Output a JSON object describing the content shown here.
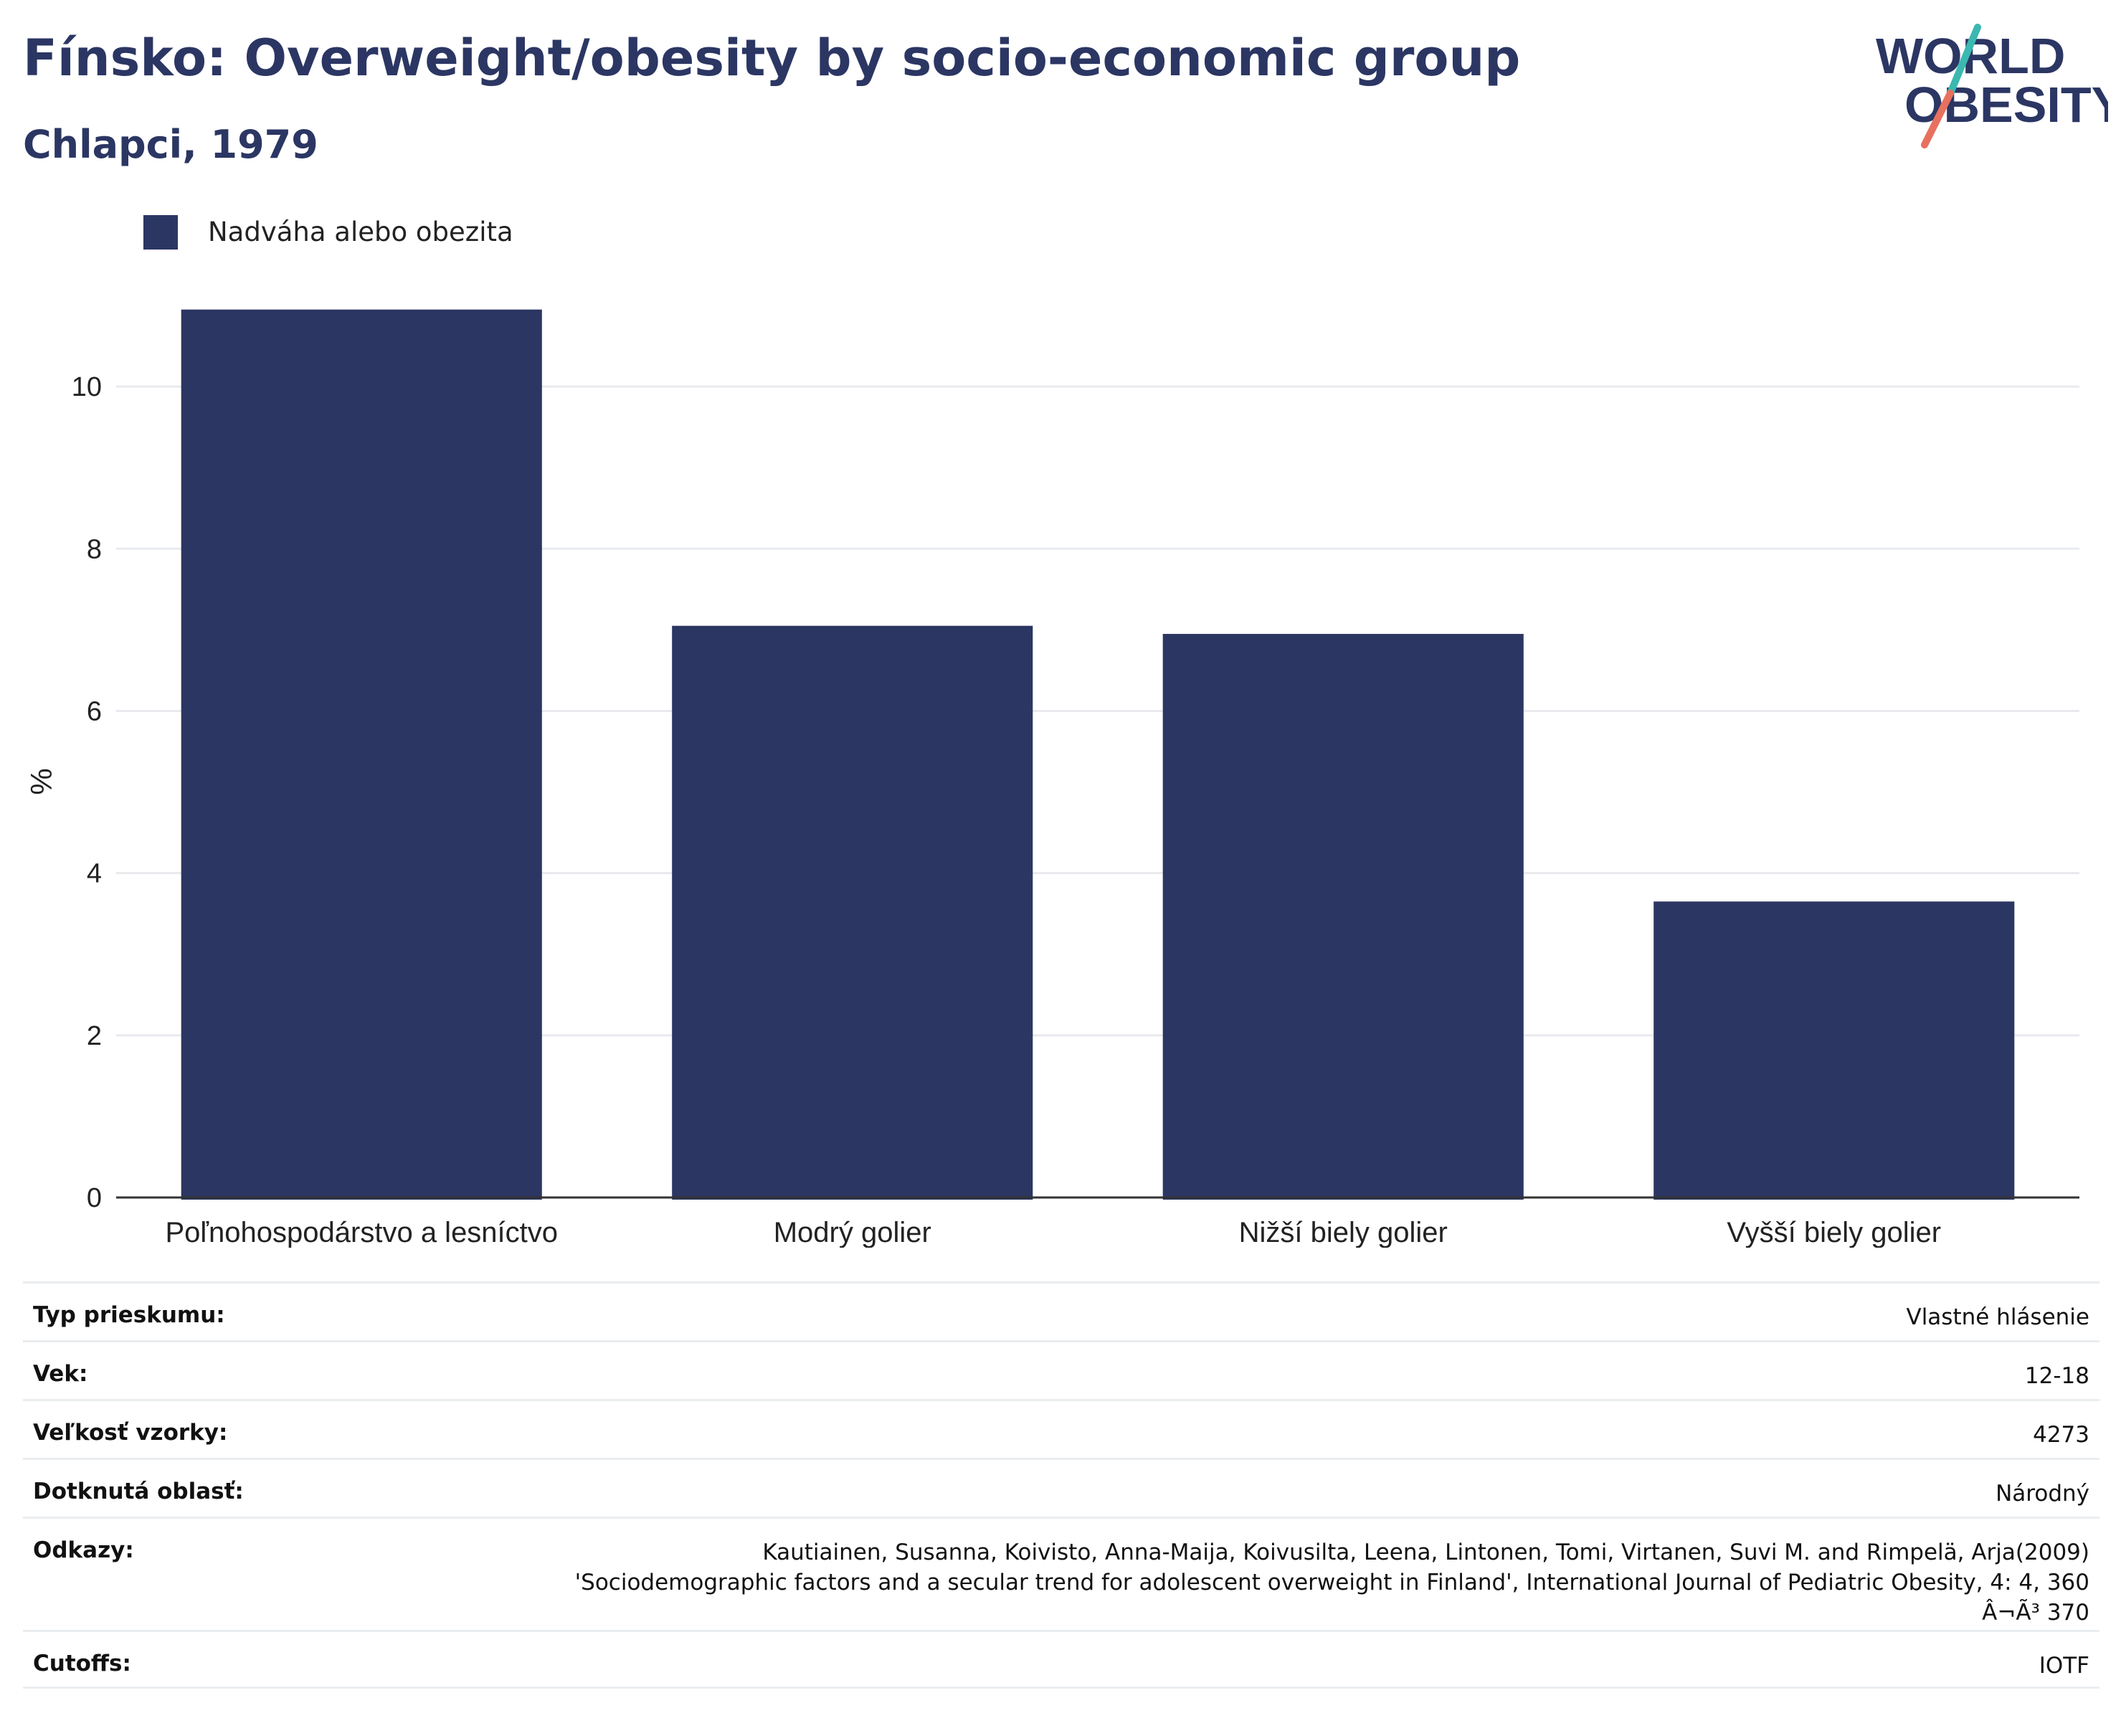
{
  "header": {
    "title": "Fínsko: Overweight/obesity by socio-economic group",
    "subtitle": "Chlapci, 1979"
  },
  "logo": {
    "line1": "WORLD",
    "line2": "OBESITY",
    "colors": {
      "text": "#2b3663",
      "slash_top": "#3bb8b0",
      "slash_bottom": "#e8705f"
    }
  },
  "legend": {
    "label": "Nadváha alebo obezita",
    "color": "#2b3663"
  },
  "chart_data": {
    "type": "bar",
    "title": "",
    "xlabel": "",
    "ylabel": "%",
    "categories": [
      "Poľnohospodárstvo a lesníctvo",
      "Modrý golier",
      "Nižší biely golier",
      "Vyšší biely golier"
    ],
    "series": [
      {
        "name": "Nadváha alebo obezita",
        "values": [
          10.95,
          7.05,
          6.95,
          3.65
        ],
        "color": "#2b3663"
      }
    ],
    "ylim": [
      0,
      11
    ],
    "yticks": [
      0,
      2,
      4,
      6,
      8,
      10
    ],
    "grid": true,
    "legend_position": "top-left"
  },
  "info": {
    "rows": [
      {
        "key": "Typ prieskumu:",
        "lines": [
          "Vlastné hlásenie"
        ]
      },
      {
        "key": "Vek:",
        "lines": [
          "12-18"
        ]
      },
      {
        "key": "Veľkosť vzorky:",
        "lines": [
          "4273"
        ]
      },
      {
        "key": "Dotknutá oblasť:",
        "lines": [
          "Národný"
        ]
      },
      {
        "key": "Odkazy:",
        "lines": [
          "Kautiainen, Susanna, Koivisto, Anna-Maija, Koivusilta, Leena, Lintonen, Tomi, Virtanen, Suvi M. and Rimpelä, Arja(2009)",
          "'Sociodemographic factors and a secular trend for adolescent overweight in Finland', International Journal of Pediatric Obesity, 4: 4, 360",
          "Â¬Ã³ 370"
        ]
      },
      {
        "key": "Cutoffs:",
        "lines": [
          "IOTF"
        ]
      }
    ]
  }
}
